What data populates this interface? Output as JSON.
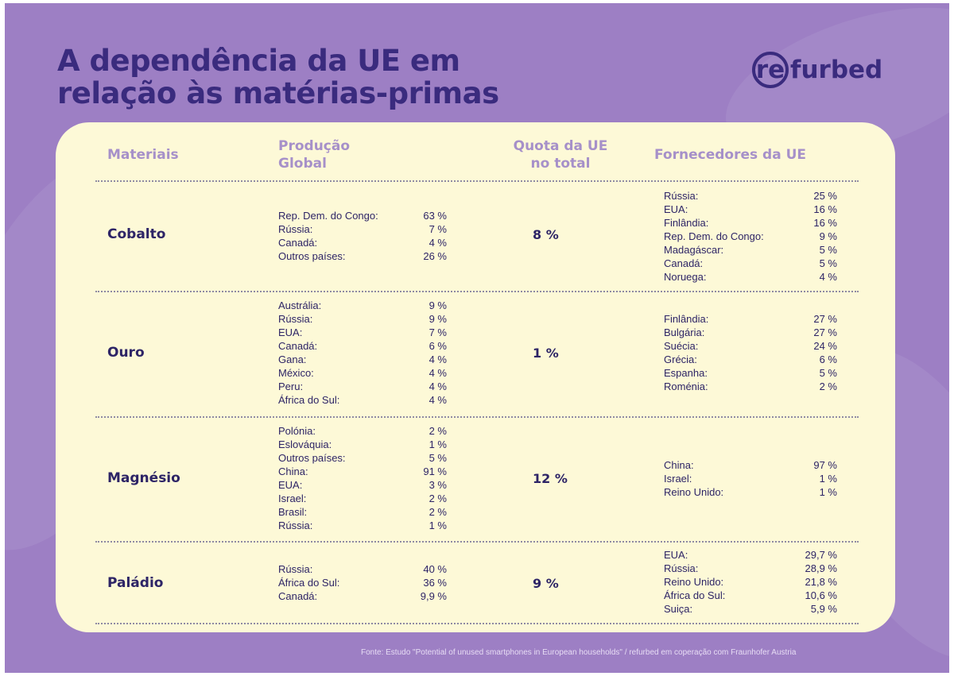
{
  "title": {
    "line1": "A dependência da UE em",
    "line2": "relação às matérias-primas"
  },
  "logo": {
    "ring_text": "re",
    "rest_text": "furbed"
  },
  "headers": {
    "materials": "Materiais",
    "production_line1": "Produção",
    "production_line2": "Global",
    "share_line1": "Quota da UE",
    "share_line2": "no total",
    "suppliers": "Fornecedores da UE"
  },
  "rows": [
    {
      "material": "Cobalto",
      "eu_share": "8 %",
      "production": [
        {
          "country": "Rep. Dem. do Congo:",
          "value": "63 %"
        },
        {
          "country": "Rússia:",
          "value": "7 %"
        },
        {
          "country": "Canadá:",
          "value": "4 %"
        },
        {
          "country": "Outros países:",
          "value": "26 %"
        }
      ],
      "suppliers": [
        {
          "country": "Rússia:",
          "value": "25 %"
        },
        {
          "country": "EUA:",
          "value": "16 %"
        },
        {
          "country": "Finlândia:",
          "value": "16 %"
        },
        {
          "country": "Rep. Dem. do Congo:",
          "value": "9 %"
        },
        {
          "country": "Madagáscar:",
          "value": "5 %"
        },
        {
          "country": "Canadá:",
          "value": "5 %"
        },
        {
          "country": "Noruega:",
          "value": "4 %"
        }
      ]
    },
    {
      "material": "Ouro",
      "eu_share": "1 %",
      "production": [
        {
          "country": "Austrália:",
          "value": "9 %"
        },
        {
          "country": "Rússia:",
          "value": "9 %"
        },
        {
          "country": "EUA:",
          "value": "7 %"
        },
        {
          "country": "Canadá:",
          "value": "6 %"
        },
        {
          "country": "Gana:",
          "value": "4 %"
        },
        {
          "country": "México:",
          "value": "4 %"
        },
        {
          "country": "Peru:",
          "value": "4 %"
        },
        {
          "country": "África do Sul:",
          "value": "4 %"
        }
      ],
      "suppliers": [
        {
          "country": "Finlândia:",
          "value": "27 %"
        },
        {
          "country": "Bulgária:",
          "value": "27 %"
        },
        {
          "country": "Suécia:",
          "value": "24 %"
        },
        {
          "country": "Grécia:",
          "value": "6 %"
        },
        {
          "country": "Espanha:",
          "value": "5 %"
        },
        {
          "country": "Roménia:",
          "value": "2 %"
        }
      ]
    },
    {
      "material": "Magnésio",
      "eu_share": "12 %",
      "production": [
        {
          "country": "Polónia:",
          "value": "2 %"
        },
        {
          "country": "Eslováquia:",
          "value": "1 %"
        },
        {
          "country": "Outros países:",
          "value": "5 %"
        },
        {
          "country": "China:",
          "value": "91 %"
        },
        {
          "country": "EUA:",
          "value": "3 %"
        },
        {
          "country": "Israel:",
          "value": "2 %"
        },
        {
          "country": "Brasil:",
          "value": "2 %"
        },
        {
          "country": "Rússia:",
          "value": "1 %"
        }
      ],
      "suppliers": [
        {
          "country": "China:",
          "value": "97 %"
        },
        {
          "country": "Israel:",
          "value": "1 %"
        },
        {
          "country": "Reino Unido:",
          "value": "1 %"
        }
      ]
    },
    {
      "material": "Paládio",
      "eu_share": "9 %",
      "production": [
        {
          "country": "Rússia:",
          "value": "40 %"
        },
        {
          "country": "África do Sul:",
          "value": "36 %"
        },
        {
          "country": "Canadá:",
          "value": "9,9 %"
        }
      ],
      "suppliers": [
        {
          "country": "EUA:",
          "value": "29,7 %"
        },
        {
          "country": "Rússia:",
          "value": "28,9 %"
        },
        {
          "country": "Reino Unido:",
          "value": "21,8 %"
        },
        {
          "country": "África do Sul:",
          "value": "10,6 %"
        },
        {
          "country": "Suiça:",
          "value": "5,9 %"
        }
      ]
    }
  ],
  "source": "Fonte: Estudo \"Potential of unused smartphones in European households\" / refurbed em coperação com Fraunhofer Austria",
  "colors": {
    "background": "#9d7fc4",
    "card": "#fdf9d7",
    "title": "#3a2b7e",
    "header": "#a690c9",
    "text": "#2d2466"
  }
}
